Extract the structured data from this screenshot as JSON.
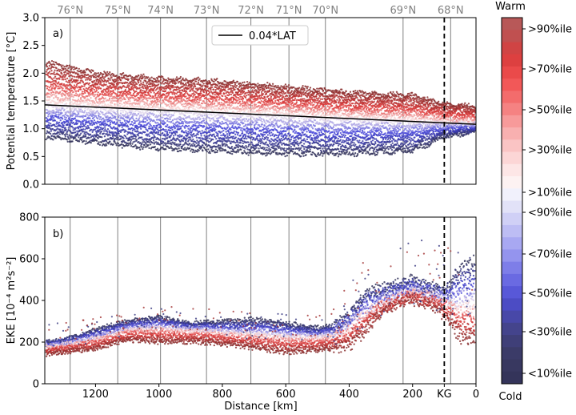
{
  "figure": {
    "latitudes": [
      {
        "label": "76°N",
        "x": 1280
      },
      {
        "label": "75°N",
        "x": 1130
      },
      {
        "label": "74°N",
        "x": 995
      },
      {
        "label": "73°N",
        "x": 850
      },
      {
        "label": "72°N",
        "x": 710
      },
      {
        "label": "71°N",
        "x": 590
      },
      {
        "label": "70°N",
        "x": 475
      },
      {
        "label": "69°N",
        "x": 230
      },
      {
        "label": "68°N",
        "x": 80
      }
    ],
    "kg_marker": {
      "label": "KG",
      "x": 100
    },
    "colors": {
      "warm_dark": "#8b3030",
      "warm": "#e03a3a",
      "neutral": "#fbeeee",
      "cold": "#3f3fd8",
      "cold_dark": "#34345c",
      "grid": "#808080"
    }
  },
  "chart_data": [
    {
      "type": "scatter",
      "panel_label": "a)",
      "xlabel": "",
      "ylabel": "Potential temperature [°C]",
      "xlim": [
        1360,
        0
      ],
      "ylim": [
        0.0,
        3.0
      ],
      "yticks": [
        "0.0",
        "0.5",
        "1.0",
        "1.5",
        "2.0",
        "2.5",
        "3.0"
      ],
      "legend": {
        "entry": "0.04*LAT",
        "placement": "top-center"
      },
      "reference_line": {
        "name": "0.04*LAT",
        "x": [
          1360,
          0
        ],
        "y": [
          1.43,
          1.08
        ]
      },
      "series_profiles": {
        "x": [
          1360,
          1200,
          1000,
          800,
          600,
          400,
          200,
          100,
          0
        ],
        "warm_max": [
          2.2,
          2.0,
          1.9,
          1.85,
          1.75,
          1.65,
          1.6,
          1.45,
          1.4
        ],
        "median": [
          1.45,
          1.4,
          1.35,
          1.3,
          1.25,
          1.2,
          1.15,
          1.12,
          1.1
        ],
        "cold_min": [
          0.85,
          0.75,
          0.65,
          0.6,
          0.55,
          0.55,
          0.6,
          0.85,
          0.95
        ]
      }
    },
    {
      "type": "scatter",
      "panel_label": "b)",
      "xlabel": "Distance [km]",
      "ylabel": "EKE [10⁻⁴ m²s⁻²]",
      "xlim": [
        1360,
        0
      ],
      "ylim": [
        0,
        800
      ],
      "xticks": [
        {
          "label": "1200",
          "value": 1200
        },
        {
          "label": "1000",
          "value": 1000
        },
        {
          "label": "800",
          "value": 800
        },
        {
          "label": "600",
          "value": 600
        },
        {
          "label": "400",
          "value": 400
        },
        {
          "label": "200",
          "value": 200
        },
        {
          "label": "KG",
          "value": 100
        },
        {
          "label": "0",
          "value": 0
        }
      ],
      "yticks": [
        "0",
        "200",
        "400",
        "600",
        "800"
      ],
      "series_profiles": {
        "x": [
          1360,
          1300,
          1200,
          1100,
          1000,
          900,
          800,
          700,
          600,
          500,
          450,
          400,
          350,
          300,
          250,
          200,
          150,
          100,
          50,
          0
        ],
        "median": [
          180,
          190,
          220,
          260,
          270,
          260,
          250,
          240,
          230,
          225,
          235,
          280,
          340,
          390,
          420,
          440,
          430,
          400,
          380,
          370
        ],
        "cold_high": [
          200,
          210,
          260,
          300,
          320,
          290,
          300,
          310,
          290,
          270,
          280,
          330,
          430,
          460,
          480,
          500,
          470,
          450,
          560,
          600
        ],
        "warm_low": [
          140,
          150,
          170,
          210,
          200,
          200,
          190,
          170,
          150,
          160,
          170,
          180,
          250,
          340,
          380,
          400,
          380,
          330,
          220,
          200
        ]
      }
    }
  ],
  "colorbar": {
    "top_label": "Warm",
    "bottom_label": "Cold",
    "tick_labels": [
      ">90%ile",
      ">70%ile",
      ">50%ile",
      ">30%ile",
      ">10%ile",
      "<90%ile",
      "<70%ile",
      "<50%ile",
      "<30%ile",
      "<10%ile"
    ],
    "bands": [
      "#b85858",
      "#c05050",
      "#d04444",
      "#dd4040",
      "#ea4a4a",
      "#f25858",
      "#f36c6c",
      "#f58282",
      "#f79a9a",
      "#f8b0b0",
      "#fac4c4",
      "#fcd6d6",
      "#fde6e6",
      "#fdf2f2",
      "#f1f1fc",
      "#e2e2f8",
      "#d0d0f6",
      "#bdbdf4",
      "#a8a8f2",
      "#9494ee",
      "#7e7ee8",
      "#6a6ae2",
      "#5858d8",
      "#4c4cc4",
      "#4848a8",
      "#44448c",
      "#3f3f78",
      "#3b3b68",
      "#383860",
      "#34345a"
    ]
  }
}
